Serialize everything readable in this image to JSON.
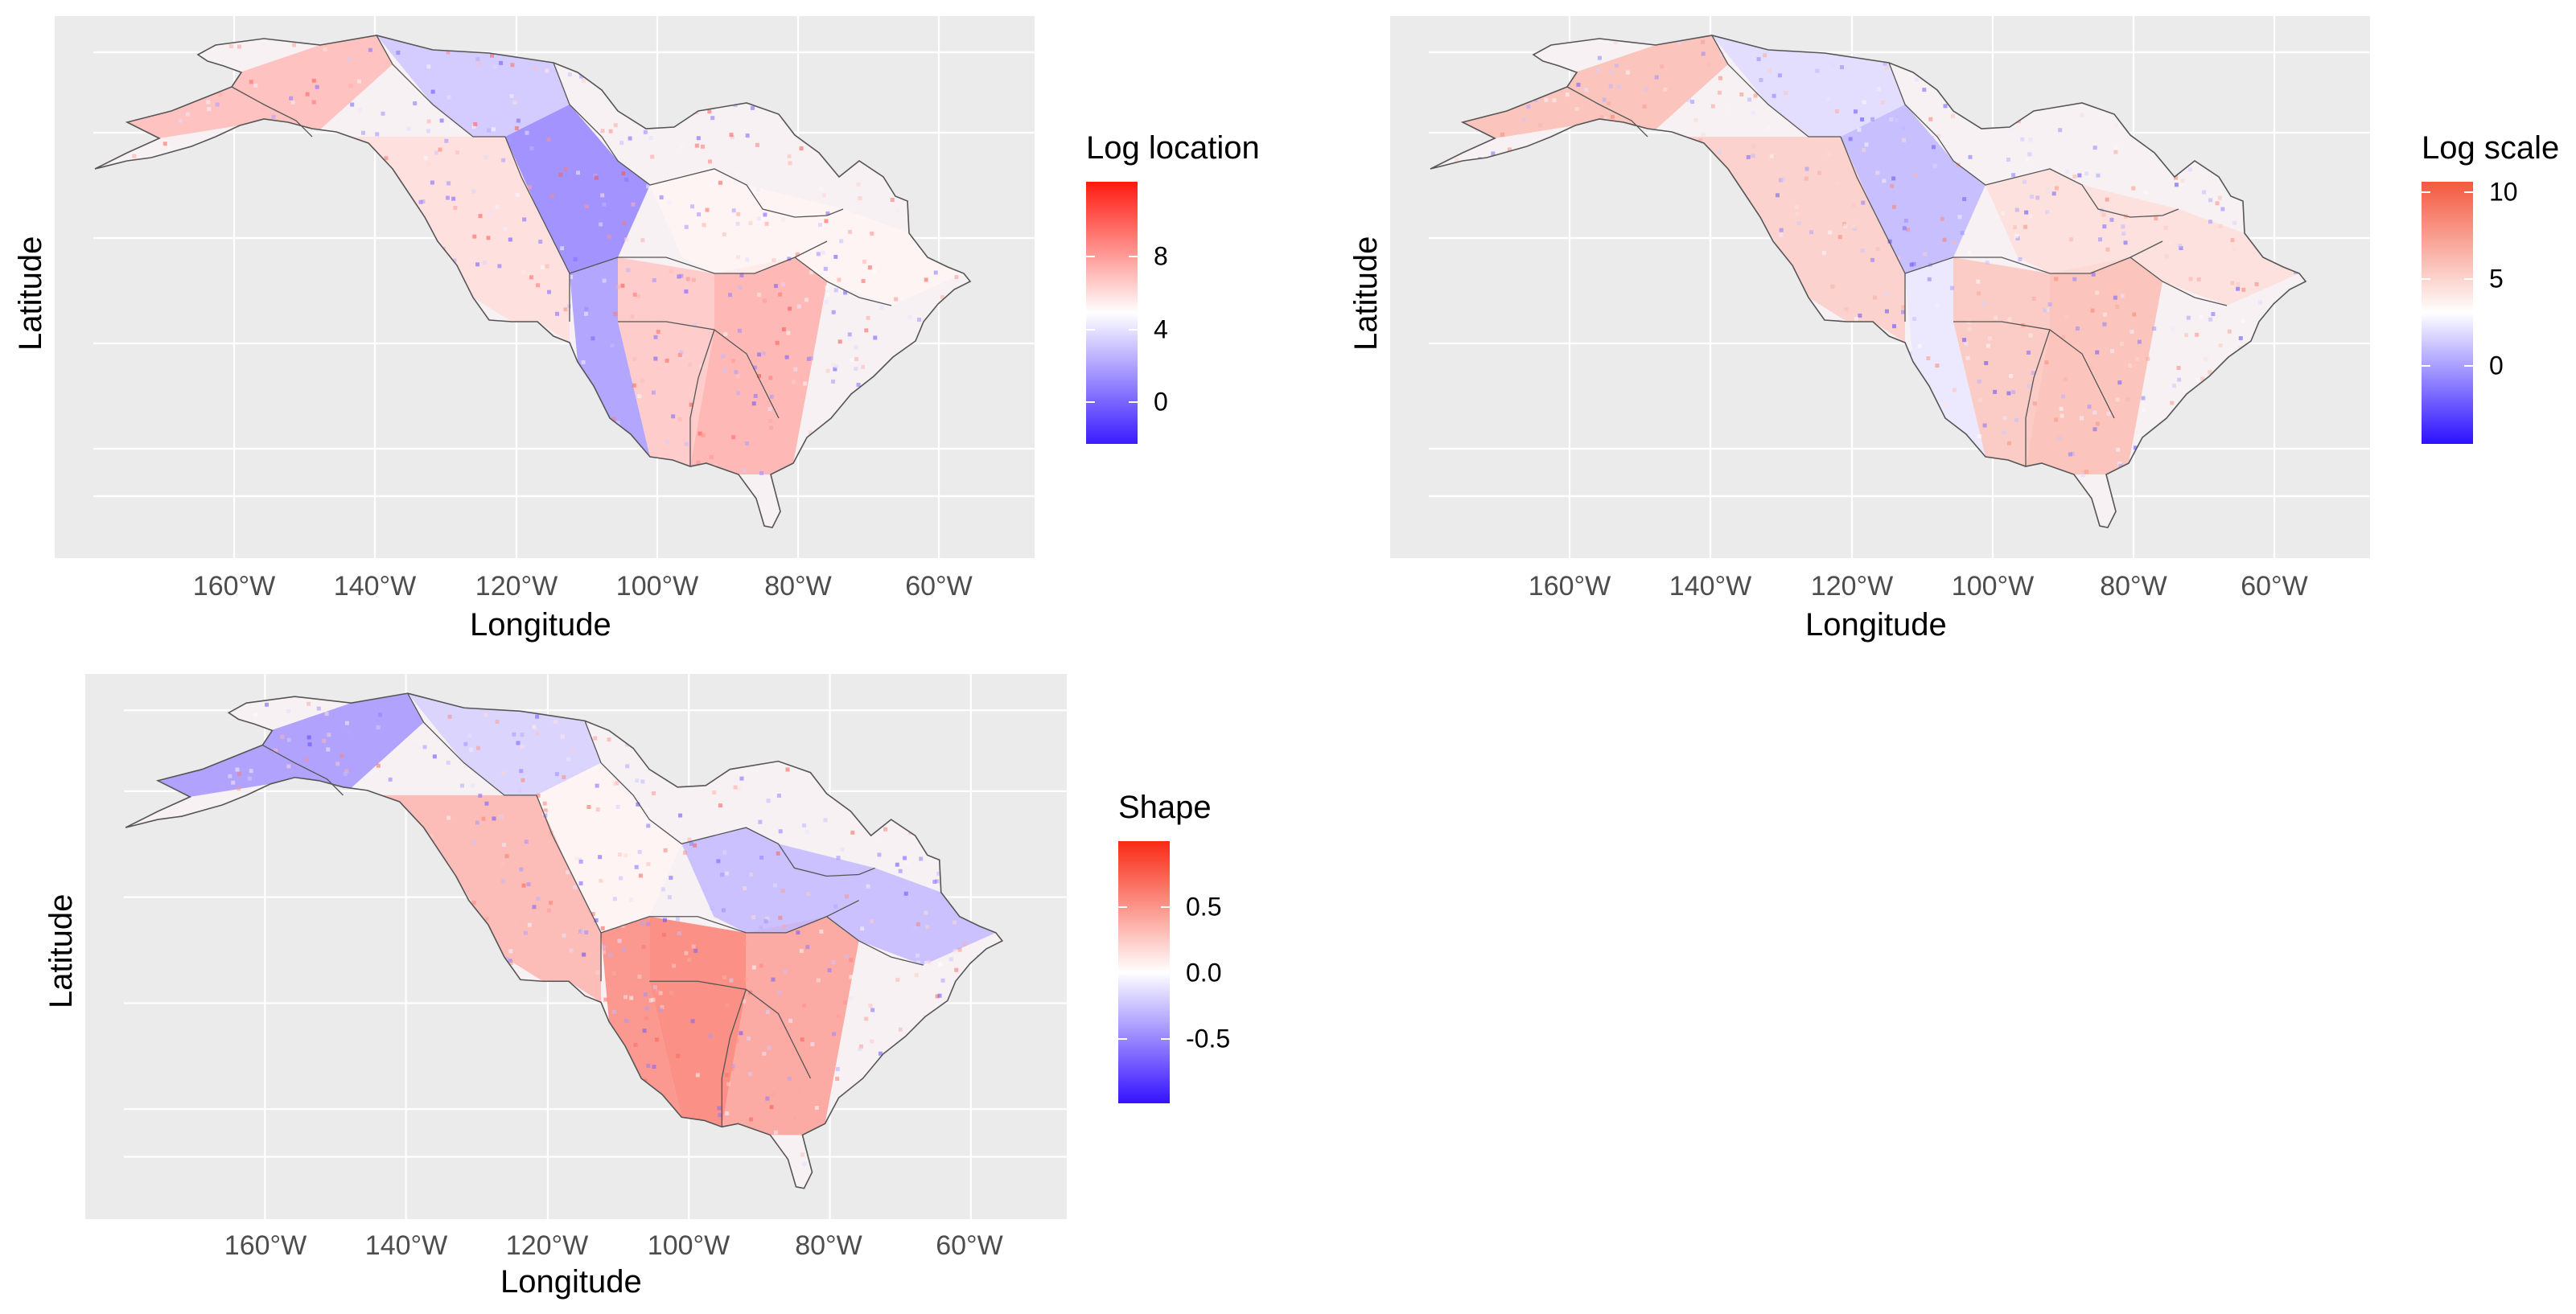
{
  "panels": [
    {
      "id": "location",
      "legend_title": "Log location",
      "legend_ticks": [
        "8",
        "4",
        "0"
      ],
      "x_ticks": [
        "160°W",
        "140°W",
        "120°W",
        "100°W",
        "80°W",
        "60°W"
      ],
      "xlabel": "Longitude",
      "ylabel": "Latitude",
      "colors": {
        "low": "#3a1cff",
        "mid": "#ffffff",
        "high": "#ff1a10"
      }
    },
    {
      "id": "scale",
      "legend_title": "Log scale",
      "legend_ticks": [
        "10",
        "5",
        "0"
      ],
      "x_ticks": [
        "160°W",
        "140°W",
        "120°W",
        "100°W",
        "80°W",
        "60°W"
      ],
      "xlabel": "Longitude",
      "ylabel": "Latitude",
      "colors": {
        "low": "#2b10ff",
        "mid": "#ffffff",
        "high": "#f4583f"
      }
    },
    {
      "id": "shape",
      "legend_title": "Shape",
      "legend_ticks": [
        "0.5",
        "0.0",
        "-0.5"
      ],
      "x_ticks": [
        "160°W",
        "140°W",
        "120°W",
        "100°W",
        "80°W",
        "60°W"
      ],
      "xlabel": "Longitude",
      "ylabel": "Latitude",
      "colors": {
        "low": "#3412ff",
        "mid": "#ffffff",
        "high": "#f82a14"
      }
    }
  ],
  "chart_data": [
    {
      "type": "heatmap",
      "title": "",
      "legend_title": "Log location",
      "xlabel": "Longitude",
      "ylabel": "Latitude",
      "x_ticks": [
        "160°W",
        "140°W",
        "120°W",
        "100°W",
        "80°W",
        "60°W"
      ],
      "legend_ticks": [
        8,
        4,
        0
      ],
      "color_range": [
        -2,
        11
      ]
    },
    {
      "type": "heatmap",
      "title": "",
      "legend_title": "Log scale",
      "xlabel": "Longitude",
      "ylabel": "Latitude",
      "x_ticks": [
        "160°W",
        "140°W",
        "120°W",
        "100°W",
        "80°W",
        "60°W"
      ],
      "legend_ticks": [
        10,
        5,
        0
      ],
      "color_range": [
        -5,
        11
      ]
    },
    {
      "type": "heatmap",
      "title": "",
      "legend_title": "Shape",
      "xlabel": "Longitude",
      "ylabel": "Latitude",
      "x_ticks": [
        "160°W",
        "140°W",
        "120°W",
        "100°W",
        "80°W",
        "60°W"
      ],
      "legend_ticks": [
        0.5,
        0.0,
        -0.5
      ],
      "color_range": [
        -1,
        1
      ]
    }
  ]
}
